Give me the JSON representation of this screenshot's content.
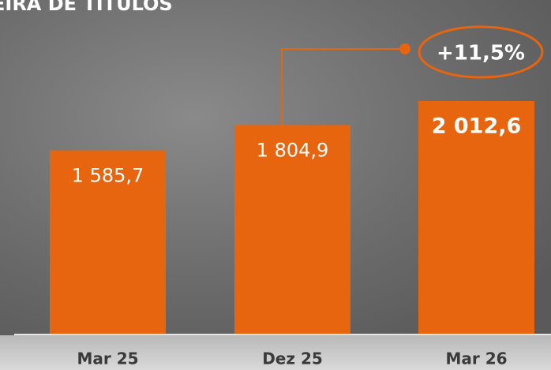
{
  "chart_data": {
    "type": "bar",
    "title": "EIRA DE TITULOS",
    "categories": [
      "Mar 25",
      "Dez 25",
      "Mar 26"
    ],
    "values": [
      1585.7,
      1804.9,
      2012.6
    ],
    "value_labels": [
      "1 585,7",
      "1 804,9",
      "2 012,6"
    ],
    "color": "#e8650f",
    "annotation": "+11,5%"
  }
}
